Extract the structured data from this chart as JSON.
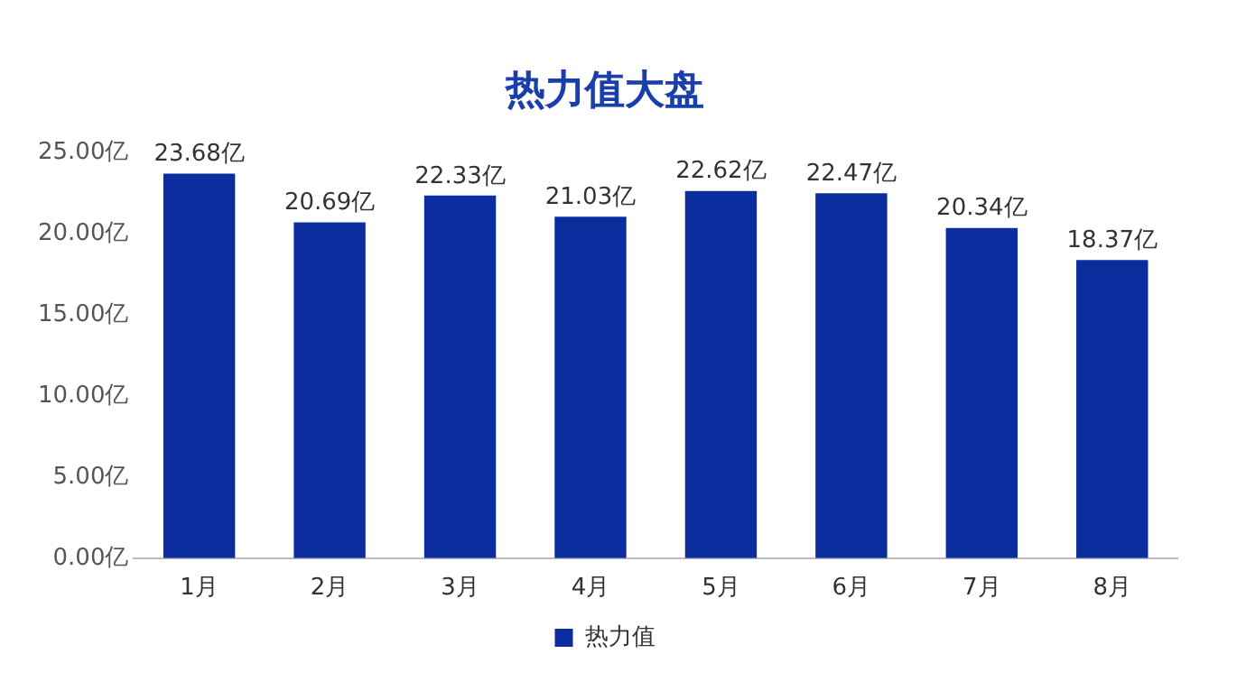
{
  "chart_data": {
    "type": "bar",
    "title": "热力值大盘",
    "categories": [
      "1月",
      "2月",
      "3月",
      "4月",
      "5月",
      "6月",
      "7月",
      "8月"
    ],
    "series": [
      {
        "name": "热力值",
        "color": "#0b2d9e",
        "values": [
          23.68,
          20.69,
          22.33,
          21.03,
          22.62,
          22.47,
          20.34,
          18.37
        ],
        "value_labels": [
          "23.68亿",
          "20.69亿",
          "22.33亿",
          "21.03亿",
          "22.62亿",
          "22.47亿",
          "20.34亿",
          "18.37亿"
        ]
      }
    ],
    "ylim": [
      0,
      25
    ],
    "yticks": [
      {
        "value": 0,
        "label": "0.00亿"
      },
      {
        "value": 5,
        "label": "5.00亿"
      },
      {
        "value": 10,
        "label": "10.00亿"
      },
      {
        "value": 15,
        "label": "15.00亿"
      },
      {
        "value": 20,
        "label": "20.00亿"
      },
      {
        "value": 25,
        "label": "25.00亿"
      }
    ],
    "grid": false,
    "legend": "bottom"
  }
}
